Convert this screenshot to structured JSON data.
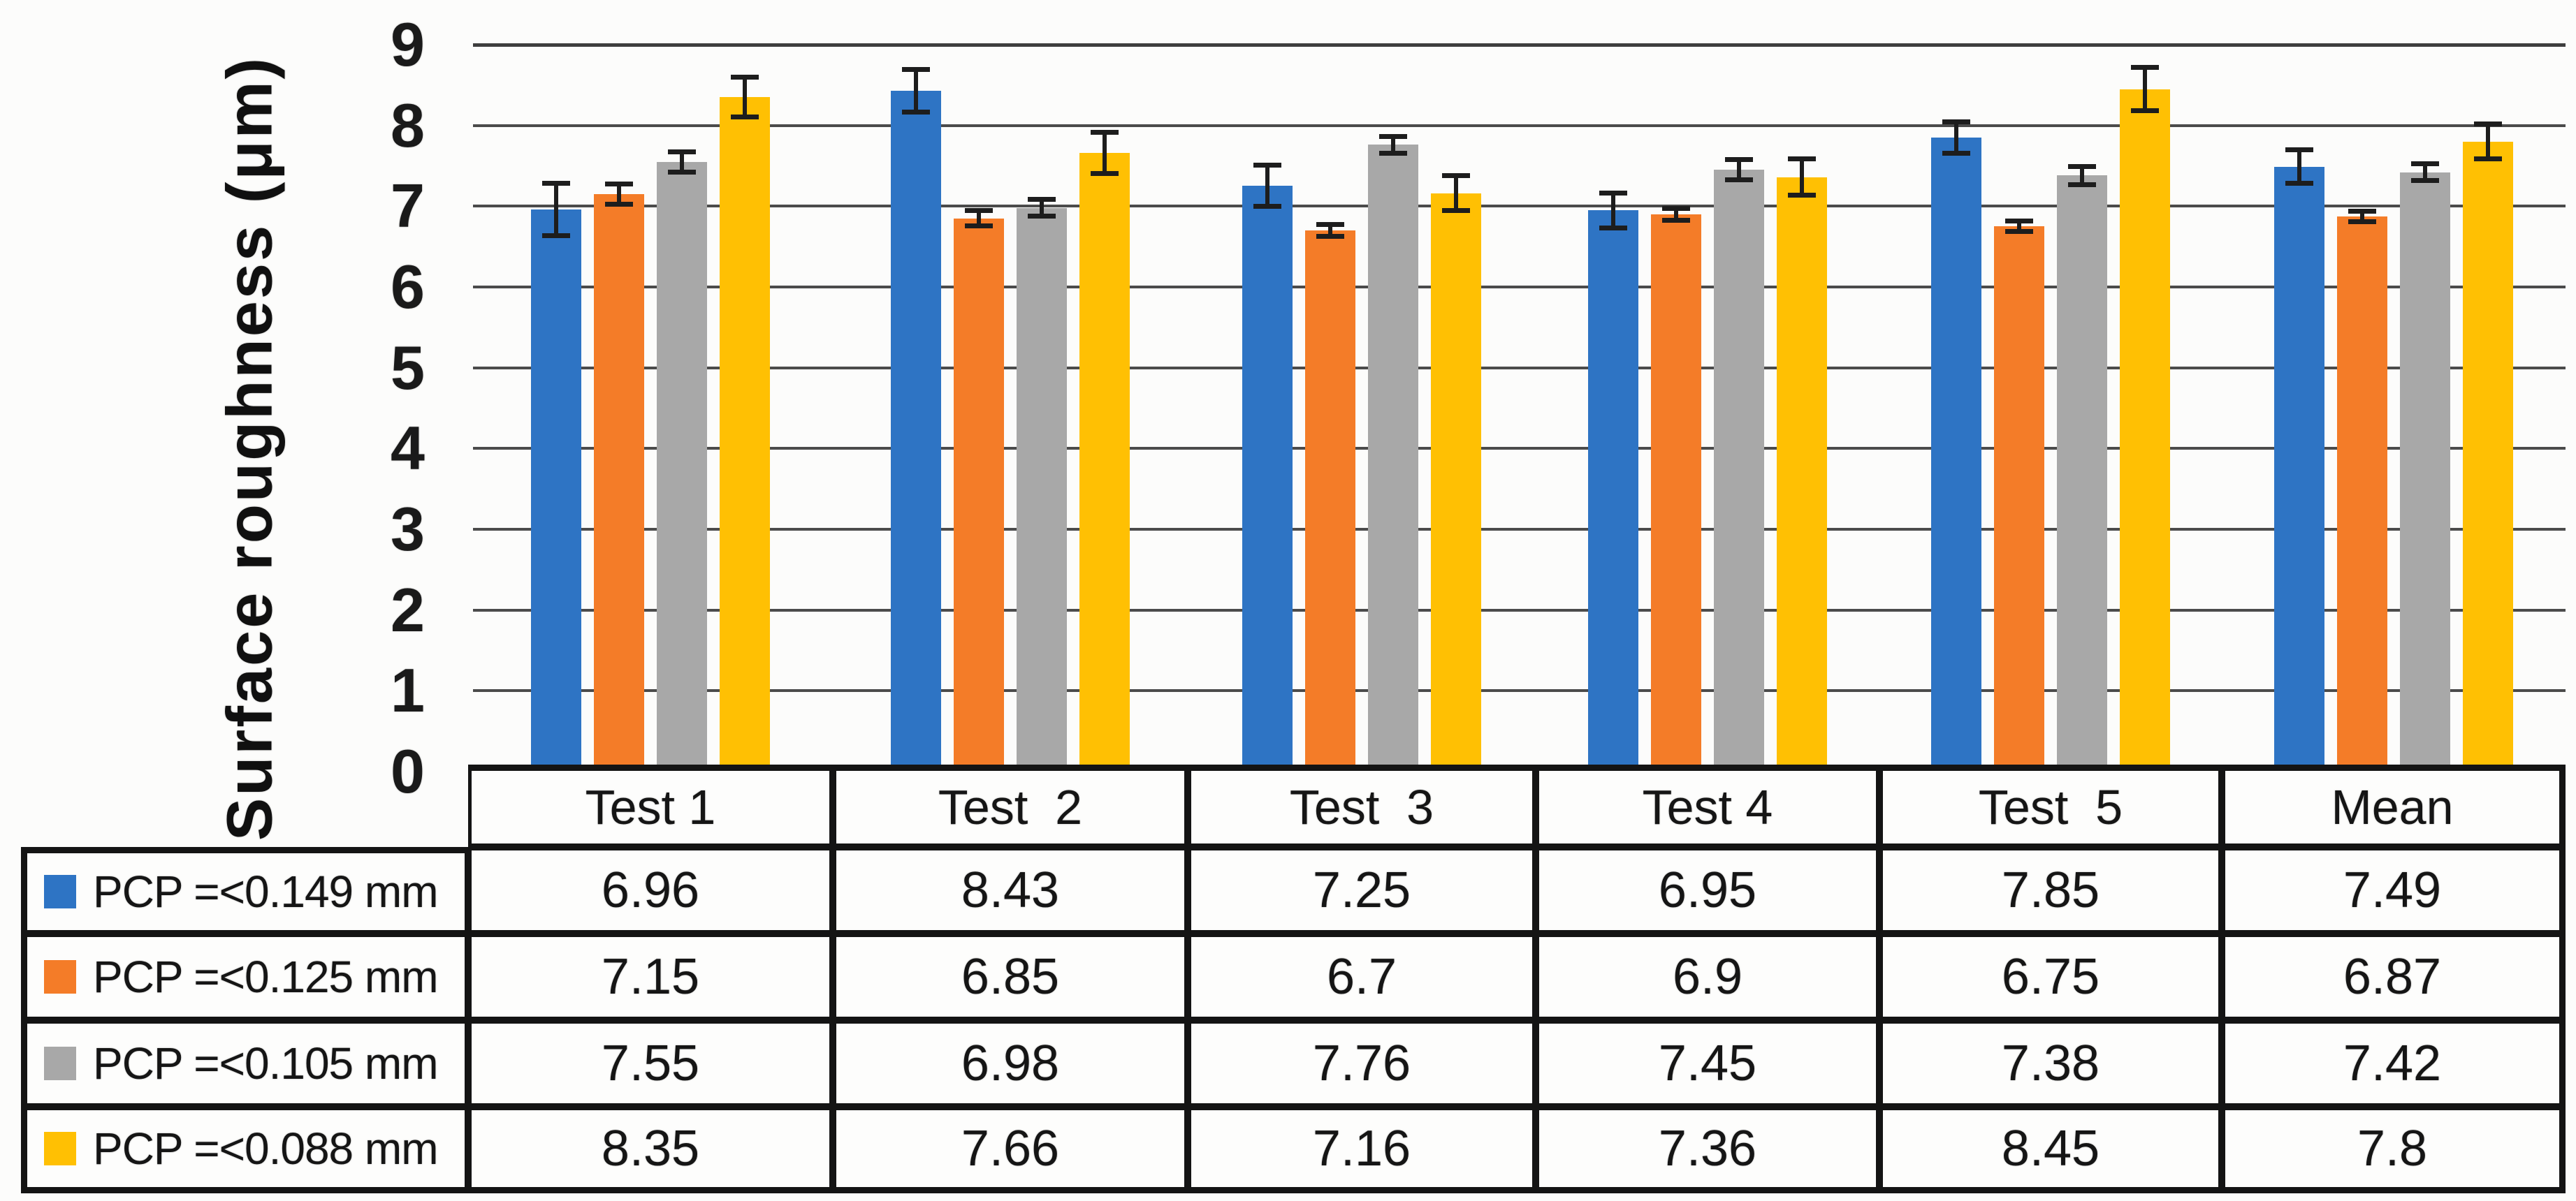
{
  "chart_data": {
    "type": "bar",
    "title": "",
    "ylabel": "Surface roughness (μm)",
    "xlabel": "",
    "categories": [
      "Test 1",
      "Test  2",
      "Test  3",
      "Test 4",
      "Test  5",
      "Mean"
    ],
    "ylim": [
      0,
      9
    ],
    "yticks": [
      "0",
      "1",
      "2",
      "3",
      "4",
      "5",
      "6",
      "7",
      "8",
      "9"
    ],
    "grid": true,
    "legend_position": "table-row-headers",
    "gridline_color": "#4B4B4B",
    "error_bar_color": "#1D1D1D",
    "series": [
      {
        "name": "PCP =<0.149 mm",
        "color": "#2E74C4",
        "values": [
          6.96,
          8.43,
          7.25,
          6.95,
          7.85,
          7.49
        ],
        "errors": [
          0.33,
          0.27,
          0.26,
          0.22,
          0.2,
          0.21
        ]
      },
      {
        "name": "PCP =<0.125 mm",
        "color": "#F47C28",
        "values": [
          7.15,
          6.85,
          6.7,
          6.9,
          6.75,
          6.87
        ],
        "errors": [
          0.13,
          0.1,
          0.08,
          0.08,
          0.07,
          0.07
        ]
      },
      {
        "name": "PCP =<0.105 mm",
        "color": "#A8A8A8",
        "values": [
          7.55,
          6.98,
          7.76,
          7.45,
          7.38,
          7.42
        ],
        "errors": [
          0.13,
          0.11,
          0.11,
          0.13,
          0.12,
          0.11
        ]
      },
      {
        "name": "PCP =<0.088 mm",
        "color": "#FFC003",
        "values": [
          8.35,
          7.66,
          7.16,
          7.36,
          8.45,
          7.8
        ],
        "errors": [
          0.25,
          0.26,
          0.22,
          0.23,
          0.27,
          0.22
        ]
      }
    ]
  }
}
